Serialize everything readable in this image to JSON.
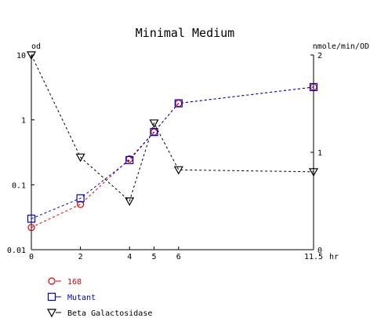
{
  "chart_data": {
    "type": "line",
    "title": "Minimal Medium",
    "xlabel": "hr",
    "ylabel_left": "od",
    "ylabel_right": "nmole/min/OD",
    "x_ticks": [
      0,
      2,
      4,
      5,
      6,
      11.5
    ],
    "x_tick_labels": [
      "0",
      "2",
      "4",
      "5",
      "6",
      "11.5"
    ],
    "xlim": [
      0,
      11.5
    ],
    "left_axis": {
      "scale": "log",
      "ylim": [
        0.01,
        10
      ],
      "ticks": [
        10,
        1,
        0.1,
        0.01
      ],
      "tick_labels": [
        "10",
        "1",
        "0.1",
        "0.01"
      ]
    },
    "right_axis": {
      "scale": "linear",
      "ylim": [
        0,
        2
      ],
      "ticks": [
        2,
        1,
        0
      ],
      "tick_labels": [
        "2",
        "1",
        "0"
      ]
    },
    "grid": false,
    "legend_position": "bottom-left",
    "series": [
      {
        "name": "168",
        "axis": "left",
        "marker": "circle",
        "color": "#dd0000",
        "x": [
          0,
          2,
          4,
          5,
          6,
          11.5
        ],
        "y": [
          0.022,
          0.05,
          0.25,
          0.65,
          1.8,
          3.2
        ]
      },
      {
        "name": "Mutant",
        "axis": "left",
        "marker": "square",
        "color": "#0000cc",
        "x": [
          0,
          2,
          4,
          5,
          6,
          11.5
        ],
        "y": [
          0.03,
          0.062,
          0.24,
          0.65,
          1.8,
          3.2
        ]
      },
      {
        "name": "Beta Galactosidase",
        "axis": "right",
        "marker": "triangle-down",
        "color": "#000000",
        "x": [
          0,
          2,
          4,
          5,
          6,
          11.5
        ],
        "y": [
          2.0,
          0.95,
          0.5,
          1.3,
          0.82,
          0.8
        ]
      }
    ]
  }
}
